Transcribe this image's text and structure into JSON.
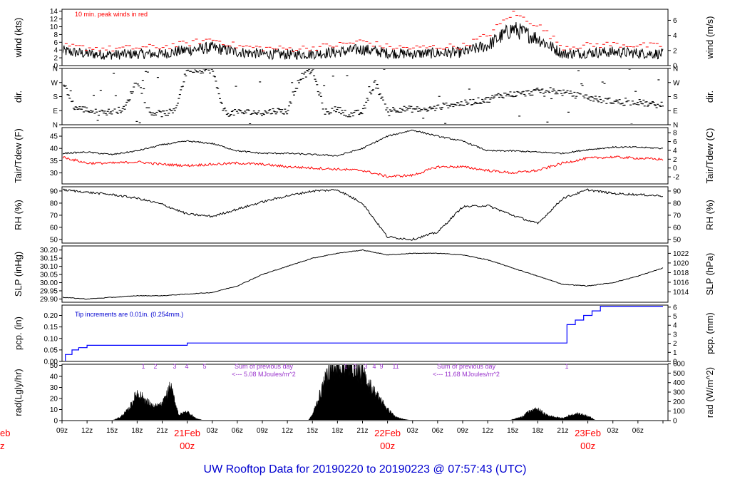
{
  "title": "UW Rooftop Data for 20190220  to  20190223 @ 07:57:43  (UTC)",
  "colors": {
    "peak": "#ff0000",
    "dewpoint": "#ff0000",
    "precip": "#0000ff",
    "annot_precip": "#0000d0",
    "annot_rad": "#9933cc",
    "day_label": "#ff0000",
    "title": "#0000d0"
  },
  "x_axis": {
    "hour_ticks": [
      "09z",
      "12z",
      "15z",
      "18z",
      "21z",
      "03z",
      "06z",
      "09z",
      "12z",
      "15z",
      "18z",
      "21z",
      "03z",
      "06z",
      "09z",
      "12z",
      "15z",
      "18z",
      "21z",
      "03z",
      "06z"
    ],
    "day_labels": [
      {
        "date": "21Feb",
        "time": "00z"
      },
      {
        "date": "22Feb",
        "time": "00z"
      },
      {
        "date": "23Feb",
        "time": "00z"
      }
    ],
    "left_clip_date": "eb",
    "left_clip_time": "z"
  },
  "chart_data": [
    {
      "type": "line",
      "panel": "wind",
      "ylabel_left": "wind (kts)",
      "ylabel_right": "wind (m/s)",
      "left_ticks": [
        "0",
        "2",
        "4",
        "6",
        "8",
        "10",
        "12",
        "14"
      ],
      "right_ticks": [
        "0",
        "2",
        "4",
        "6"
      ],
      "ylim": [
        0,
        14.5
      ],
      "annotation": "10 min. peak winds in red",
      "series": [
        {
          "name": "wind",
          "hours": [
            0,
            3,
            6,
            9,
            12,
            15,
            18,
            21,
            24,
            27,
            30,
            33,
            36,
            39,
            42,
            45,
            48,
            51,
            54,
            57,
            60,
            63,
            66,
            69,
            72
          ],
          "values": [
            3.8,
            3,
            2.8,
            3,
            3,
            4,
            4.6,
            3.5,
            3,
            2.8,
            3,
            3.5,
            4.2,
            3.2,
            3,
            3.2,
            3.4,
            5.2,
            9.5,
            7,
            3,
            3.3,
            3.5,
            3.2,
            3
          ]
        },
        {
          "name": "10 min. peak",
          "hours": [
            0,
            3,
            6,
            9,
            12,
            15,
            18,
            21,
            24,
            27,
            30,
            33,
            36,
            39,
            42,
            45,
            48,
            51,
            54,
            57,
            60,
            63,
            66,
            69,
            72
          ],
          "values": [
            5,
            4.6,
            4.3,
            4.6,
            4.8,
            5.7,
            6.8,
            5,
            4.5,
            4.3,
            4.6,
            5.3,
            6.3,
            4.8,
            4.5,
            4.8,
            5,
            7.8,
            13.5,
            10.5,
            4.8,
            5.2,
            5.5,
            5.2,
            5
          ]
        }
      ]
    },
    {
      "type": "scatter",
      "panel": "dir",
      "ylabel_left": "dir.",
      "ylabel_right": "dir.",
      "left_ticks": [
        "N",
        "E",
        "S",
        "W",
        "N"
      ],
      "right_ticks": [
        "N",
        "E",
        "S",
        "W",
        "N"
      ],
      "ylim": [
        0,
        360
      ],
      "hours": [
        0,
        1.5,
        3,
        4.5,
        6,
        7.5,
        9,
        10.5,
        12,
        13.5,
        15,
        16.5,
        18,
        19.5,
        21,
        22.5,
        24,
        25.5,
        27,
        28.5,
        30,
        31.5,
        33,
        34.5,
        36,
        37.5,
        39,
        40.5,
        42,
        43.5,
        45,
        46.5,
        48,
        49.5,
        51,
        52.5,
        54,
        55.5,
        57,
        58.5,
        60,
        61.5,
        63,
        64.5,
        66,
        67.5,
        69,
        70.5,
        72
      ],
      "values": [
        285,
        110,
        95,
        75,
        85,
        100,
        290,
        80,
        70,
        85,
        355,
        350,
        350,
        70,
        80,
        80,
        75,
        90,
        85,
        300,
        350,
        80,
        100,
        65,
        80,
        270,
        95,
        100,
        100,
        95,
        110,
        130,
        135,
        150,
        160,
        190,
        195,
        200,
        215,
        220,
        205,
        190,
        175,
        160,
        150,
        140,
        145,
        130,
        125
      ]
    },
    {
      "type": "line",
      "panel": "temp",
      "ylabel_left": "Tair/Tdew (F)",
      "ylabel_right": "Tair/Tdew (C)",
      "left_ticks": [
        "30",
        "35",
        "40",
        "45"
      ],
      "right_ticks": [
        "-2",
        "0",
        "2",
        "4",
        "6",
        "8"
      ],
      "ylim": [
        25.5,
        48.5
      ],
      "series": [
        {
          "name": "Tair",
          "hours": [
            0,
            3,
            6,
            9,
            12,
            15,
            18,
            21,
            24,
            27,
            30,
            33,
            36,
            39,
            42,
            45,
            48,
            51,
            54,
            57,
            60,
            63,
            66,
            69,
            72
          ],
          "values": [
            38,
            38.5,
            37.5,
            39,
            41.5,
            43,
            42,
            39,
            38,
            38,
            37.5,
            37,
            40,
            45,
            47.5,
            45,
            43,
            39,
            39,
            38.5,
            38,
            39.5,
            40.5,
            40.5,
            40
          ]
        },
        {
          "name": "Tdew",
          "hours": [
            0,
            3,
            6,
            9,
            12,
            15,
            18,
            21,
            24,
            27,
            30,
            33,
            36,
            39,
            42,
            45,
            48,
            51,
            54,
            57,
            60,
            63,
            66,
            69,
            72
          ],
          "values": [
            36.5,
            34,
            34,
            34.5,
            33.5,
            33,
            33.5,
            34,
            33.5,
            32.5,
            32,
            31.5,
            31,
            28.5,
            29,
            32.5,
            32.5,
            31,
            30,
            31,
            34,
            36,
            36.5,
            36,
            35.5
          ]
        }
      ]
    },
    {
      "type": "line",
      "panel": "rh",
      "ylabel_left": "RH (%)",
      "ylabel_right": "RH (%)",
      "left_ticks": [
        "50",
        "60",
        "70",
        "80",
        "90"
      ],
      "right_ticks": [
        "50",
        "60",
        "70",
        "80",
        "90"
      ],
      "ylim": [
        47,
        93.5
      ],
      "hours": [
        0,
        3,
        6,
        9,
        12,
        15,
        18,
        21,
        24,
        27,
        30,
        33,
        36,
        39,
        42,
        45,
        48,
        51,
        54,
        57,
        60,
        63,
        66,
        69,
        72
      ],
      "values": [
        91,
        89,
        87,
        84,
        79,
        71,
        69,
        75,
        81,
        86,
        90,
        91,
        80,
        52,
        50,
        56,
        77,
        78,
        70,
        63,
        84,
        91,
        88,
        87,
        86
      ]
    },
    {
      "type": "line",
      "panel": "slp",
      "ylabel_left": "SLP (inHg)",
      "ylabel_right": "SLP (hPa)",
      "left_ticks": [
        "29.90",
        "29.95",
        "30.00",
        "30.05",
        "30.10",
        "30.15",
        "30.20"
      ],
      "right_ticks": [
        "1014",
        "1016",
        "1018",
        "1020",
        "1022"
      ],
      "ylim": [
        29.88,
        30.225
      ],
      "hours": [
        0,
        3,
        6,
        9,
        12,
        15,
        18,
        21,
        24,
        27,
        30,
        33,
        36,
        39,
        42,
        45,
        48,
        51,
        54,
        57,
        60,
        63,
        66,
        69,
        72
      ],
      "values": [
        29.91,
        29.9,
        29.91,
        29.92,
        29.92,
        29.93,
        29.94,
        29.98,
        30.05,
        30.1,
        30.15,
        30.18,
        30.2,
        30.17,
        30.18,
        30.18,
        30.17,
        30.14,
        30.09,
        30.04,
        29.99,
        29.98,
        30,
        30.04,
        30.09
      ]
    },
    {
      "type": "line",
      "panel": "pcp",
      "ylabel_left": "pcp. (in)",
      "ylabel_right": "pcp. (mm)",
      "left_ticks": [
        "0.00",
        "0.05",
        "0.10",
        "0.15",
        "0.20"
      ],
      "right_ticks": [
        "0",
        "1",
        "2",
        "3",
        "4",
        "5",
        "6"
      ],
      "ylim": [
        0,
        0.245
      ],
      "annotation": "Tip increments are 0.01in. (0.254mm.)",
      "hours": [
        0,
        0.4,
        1.2,
        2,
        3,
        15,
        60,
        60.5,
        61.5,
        62.5,
        63.5,
        64.5,
        72
      ],
      "values": [
        0,
        0.03,
        0.05,
        0.06,
        0.07,
        0.08,
        0.08,
        0.16,
        0.18,
        0.2,
        0.22,
        0.24,
        0.24
      ]
    },
    {
      "type": "area",
      "panel": "rad",
      "ylabel_left": "rad(Lgly/hr)",
      "ylabel_right": "rad (W/m^2)",
      "left_ticks": [
        "0",
        "10",
        "20",
        "30",
        "40",
        "50"
      ],
      "right_ticks": [
        "0",
        "100",
        "200",
        "300",
        "400",
        "500",
        "600"
      ],
      "ylim": [
        0,
        51
      ],
      "hours": [
        6,
        7,
        8,
        9,
        10,
        11,
        12,
        13,
        14,
        15,
        16,
        17,
        29.5,
        30,
        31,
        32,
        33,
        34,
        35,
        36,
        37,
        38,
        39,
        40,
        41,
        42,
        53.5,
        55,
        56,
        57,
        58,
        59,
        60,
        61,
        62,
        63,
        64
      ],
      "values": [
        0,
        3,
        10,
        25,
        18,
        12,
        14,
        30,
        5,
        8,
        2,
        0,
        0,
        5,
        25,
        45,
        48,
        50,
        48,
        42,
        30,
        20,
        10,
        3,
        1,
        0,
        0,
        3,
        8,
        10,
        5,
        3,
        2,
        5,
        6,
        4,
        0
      ],
      "annotations": [
        {
          "text": "Sum of previous day",
          "line2": "<--- 5.08 MJoules/m^2"
        },
        {
          "text": "Sum of previous day",
          "line2": "<--- 11.68 MJoules/m^2"
        }
      ],
      "count_labels": [
        "1",
        "2",
        "3",
        "4",
        "5",
        "1",
        "2",
        "3",
        "4",
        "5",
        "9",
        "11",
        "1"
      ]
    }
  ]
}
